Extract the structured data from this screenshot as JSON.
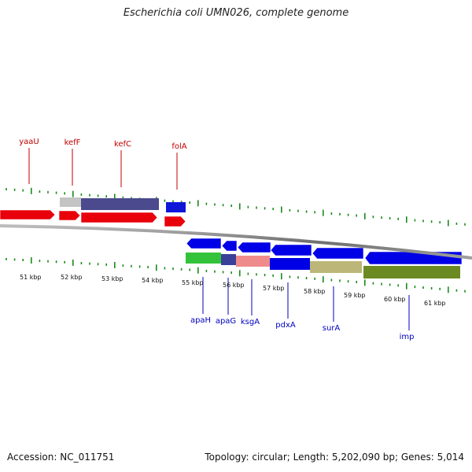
{
  "title": "Escherichia coli UMN026, complete genome",
  "footer": {
    "accession": "Accession: NC_011751",
    "summary": "Topology: circular; Length: 5,202,090 bp; Genes: 5,014"
  },
  "ruler_labels": [
    "51 kbp",
    "52 kbp",
    "53 kbp",
    "54 kbp",
    "55 kbp",
    "56 kbp",
    "57 kbp",
    "58 kbp",
    "59 kbp",
    "60 kbp",
    "61 kbp"
  ],
  "top_genes": [
    "yaaU",
    "kefF",
    "kefC",
    "folA"
  ],
  "bottom_genes": [
    "apaH",
    "apaG",
    "ksgA",
    "pdxA",
    "surA",
    "imp"
  ],
  "colors": {
    "forward_strand": "#e8000b",
    "reverse_strand": "#0000e6",
    "top_gene_label": "#c00000",
    "bottom_gene_label": "#0000c0",
    "ruler_tick": "#1a8a1a"
  }
}
